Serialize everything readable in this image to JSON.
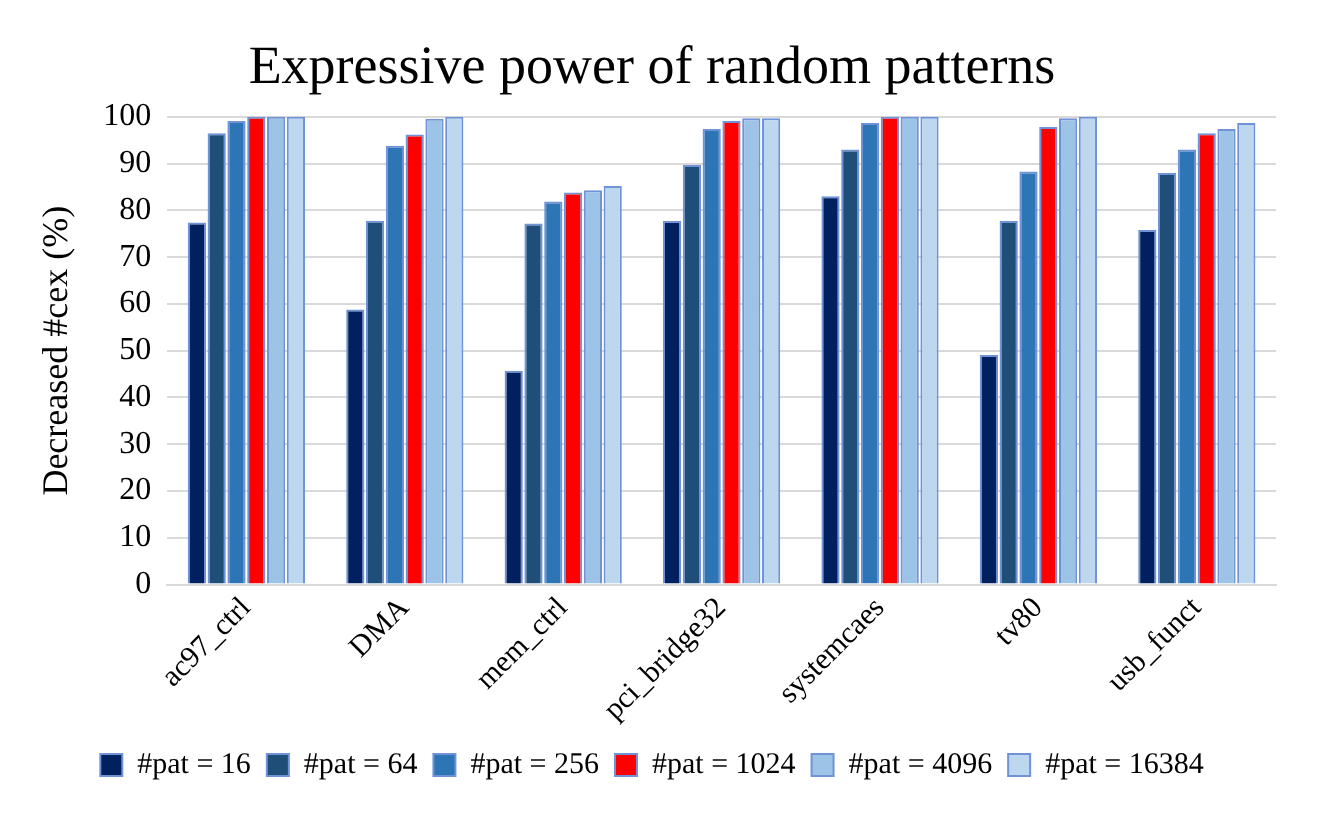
{
  "chart_data": {
    "type": "bar",
    "title": "Expressive power of random patterns",
    "ylabel": "Decreased #cex (%)",
    "categories": [
      "ac97_ctrl",
      "DMA",
      "mem_ctrl",
      "pci_bridge32",
      "systemcaes",
      "tv80",
      "usb_funct"
    ],
    "series": [
      {
        "name": "#pat = 16",
        "color": "#002060",
        "values": [
          77.4,
          58.8,
          45.7,
          77.7,
          83,
          49.1,
          75.8
        ]
      },
      {
        "name": "#pat = 64",
        "color": "#1f4e79",
        "values": [
          96.5,
          77.8,
          77.2,
          89.7,
          93,
          77.7,
          88
        ]
      },
      {
        "name": "#pat = 256",
        "color": "#2e75b6",
        "values": [
          99.1,
          93.8,
          81.9,
          97.4,
          98.7,
          88.3,
          93
        ]
      },
      {
        "name": "#pat = 1024",
        "color": "#ff0000",
        "values": [
          100,
          96.2,
          83.8,
          99.1,
          100,
          97.8,
          96.5
        ]
      },
      {
        "name": "#pat = 4096",
        "color": "#9dc3e6",
        "values": [
          100,
          99.6,
          84.3,
          99.7,
          100,
          99.7,
          97.4
        ]
      },
      {
        "name": "#pat = 16384",
        "color": "#bdd7ee",
        "values": [
          100,
          100,
          85.2,
          99.7,
          100,
          100,
          98.7
        ]
      }
    ],
    "ylim": [
      0,
      100
    ],
    "yticks": [
      0,
      10,
      20,
      30,
      40,
      50,
      60,
      70,
      80,
      90,
      100
    ],
    "grid": "y",
    "legend": "bottom"
  }
}
